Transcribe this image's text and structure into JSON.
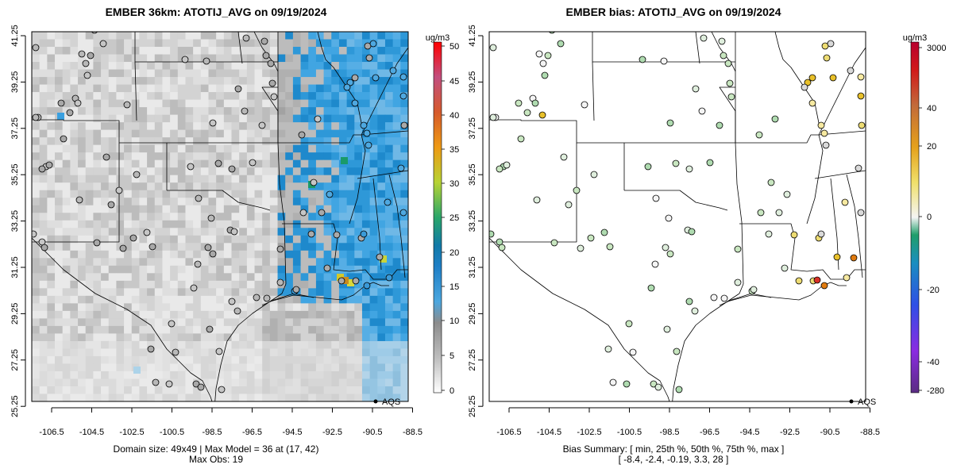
{
  "panels": [
    {
      "id": "model",
      "title": "EMBER 36km: ATOTIJ_AVG on 09/19/2024",
      "unit": "ug/m3",
      "colorbar_ticks": [
        "50",
        "45",
        "40",
        "35",
        "30",
        "25",
        "20",
        "15",
        "10",
        "5",
        "0"
      ],
      "footer": [
        "Domain size: 49x49 | Max Model = 36 at (17, 42)",
        "Max Obs: 19"
      ],
      "legend_label": "AQS"
    },
    {
      "id": "bias",
      "title": "EMBER bias: ATOTIJ_AVG on 09/19/2024",
      "unit": "ug/m3",
      "colorbar_ticks": [
        "3000",
        "40",
        "20",
        "0",
        "-20",
        "-40",
        "-280"
      ],
      "footer": [
        "Bias Summary: [ min, 25th %, 50th %, 75th %, max ]",
        "[ -8.4,   -2.4,   -0.19,   3.3,   28 ]"
      ],
      "legend_label": "AQS"
    }
  ],
  "axes": {
    "x_ticks": [
      "-106.5",
      "-104.5",
      "-102.5",
      "-100.5",
      "-98.5",
      "-96.5",
      "-94.5",
      "-92.5",
      "-90.5",
      "-88.5"
    ],
    "y_ticks": [
      "41.25",
      "39.25",
      "37.25",
      "35.25",
      "33.25",
      "31.25",
      "29.25",
      "27.25",
      "25.25"
    ]
  },
  "colors": {
    "model_scale": [
      "#f0f0f0",
      "#d9d9d9",
      "#bdbdbd",
      "#9e9e9e",
      "#56b4e9",
      "#1f8fd6",
      "#0a6bb5",
      "#1a9850",
      "#91cf60",
      "#e5d22a",
      "#f39c12",
      "#e34a33",
      "#d7191c"
    ],
    "bias_scale": [
      "#5e2d91",
      "#7b3fc7",
      "#3a4fe0",
      "#1f86d1",
      "#1a9a6a",
      "#8fd19e",
      "#f2f2f2",
      "#eee08a",
      "#e4b020",
      "#e07b10",
      "#d73027",
      "#a50026"
    ]
  }
}
